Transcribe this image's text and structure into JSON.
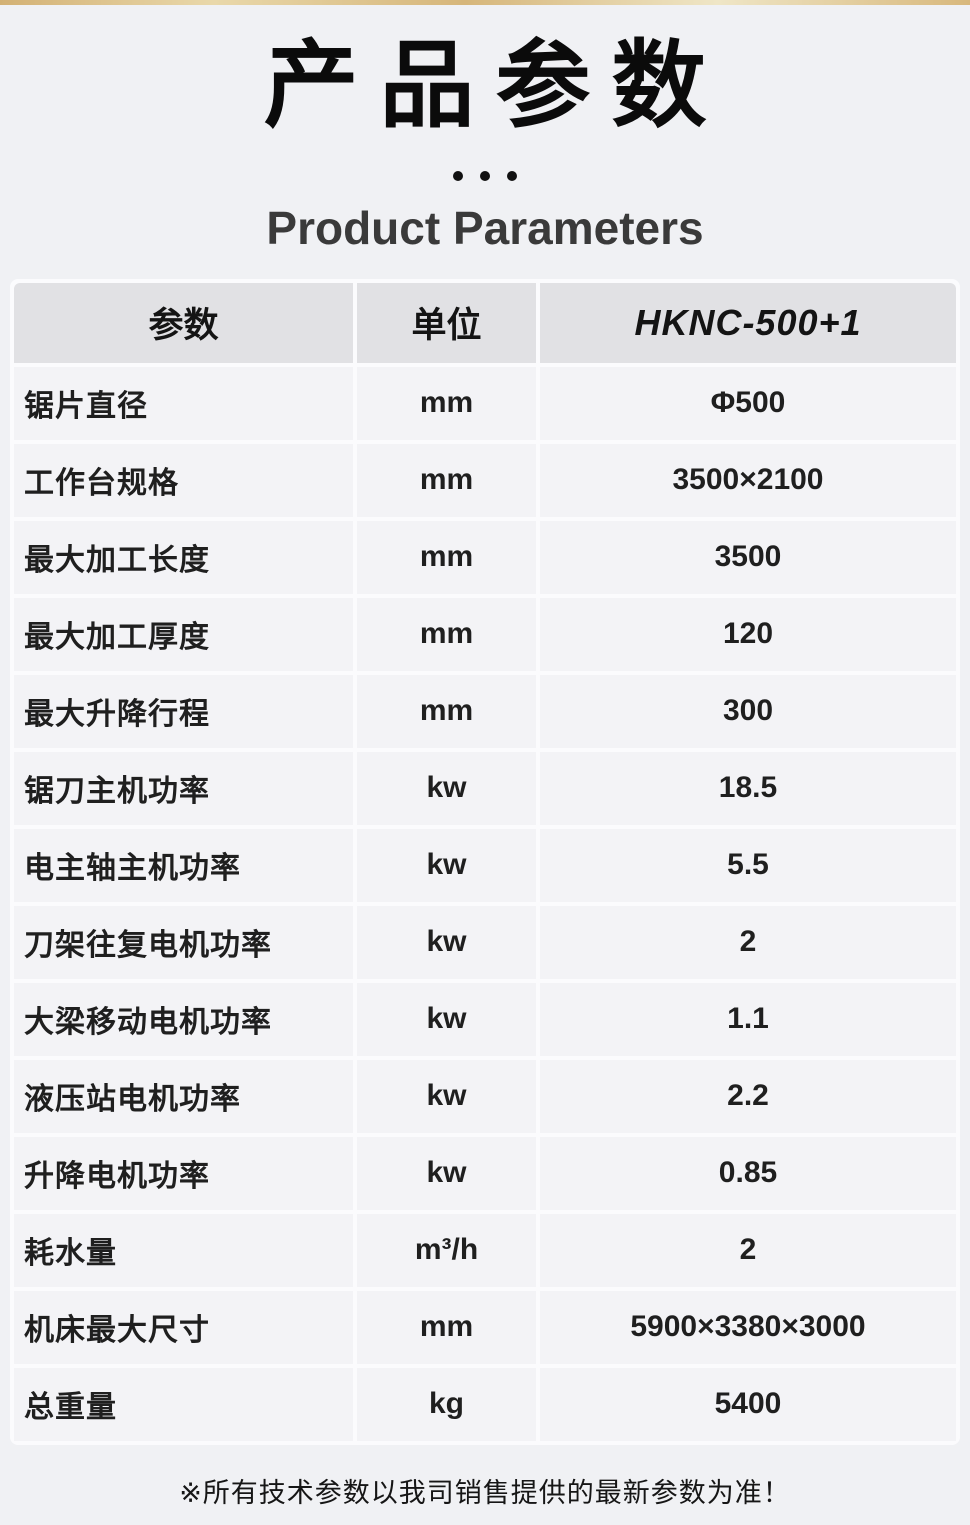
{
  "page": {
    "background_color": "#f0f1f4",
    "accent_bar_color": "#d8b87c"
  },
  "header": {
    "title": "产品参数",
    "subtitle": "Product Parameters"
  },
  "table": {
    "columns": [
      {
        "label": "参数"
      },
      {
        "label": "单位"
      },
      {
        "label": "HKNC-500+1"
      }
    ],
    "rows": [
      {
        "param": "锯片直径",
        "unit": "mm",
        "value": "Φ500"
      },
      {
        "param": "工作台规格",
        "unit": "mm",
        "value": "3500×2100"
      },
      {
        "param": "最大加工长度",
        "unit": "mm",
        "value": "3500"
      },
      {
        "param": "最大加工厚度",
        "unit": "mm",
        "value": "120"
      },
      {
        "param": "最大升降行程",
        "unit": "mm",
        "value": "300"
      },
      {
        "param": "锯刀主机功率",
        "unit": "kw",
        "value": "18.5"
      },
      {
        "param": "电主轴主机功率",
        "unit": "kw",
        "value": "5.5"
      },
      {
        "param": "刀架往复电机功率",
        "unit": "kw",
        "value": "2"
      },
      {
        "param": "大梁移动电机功率",
        "unit": "kw",
        "value": "1.1"
      },
      {
        "param": "液压站电机功率",
        "unit": "kw",
        "value": "2.2"
      },
      {
        "param": "升降电机功率",
        "unit": "kw",
        "value": "0.85"
      },
      {
        "param": "耗水量",
        "unit": "m³/h",
        "value": "2"
      },
      {
        "param": "机床最大尺寸",
        "unit": "mm",
        "value": "5900×3380×3000"
      },
      {
        "param": "总重量",
        "unit": "kg",
        "value": "5400"
      }
    ]
  },
  "footer": {
    "note": "※所有技术参数以我司销售提供的最新参数为准！"
  }
}
